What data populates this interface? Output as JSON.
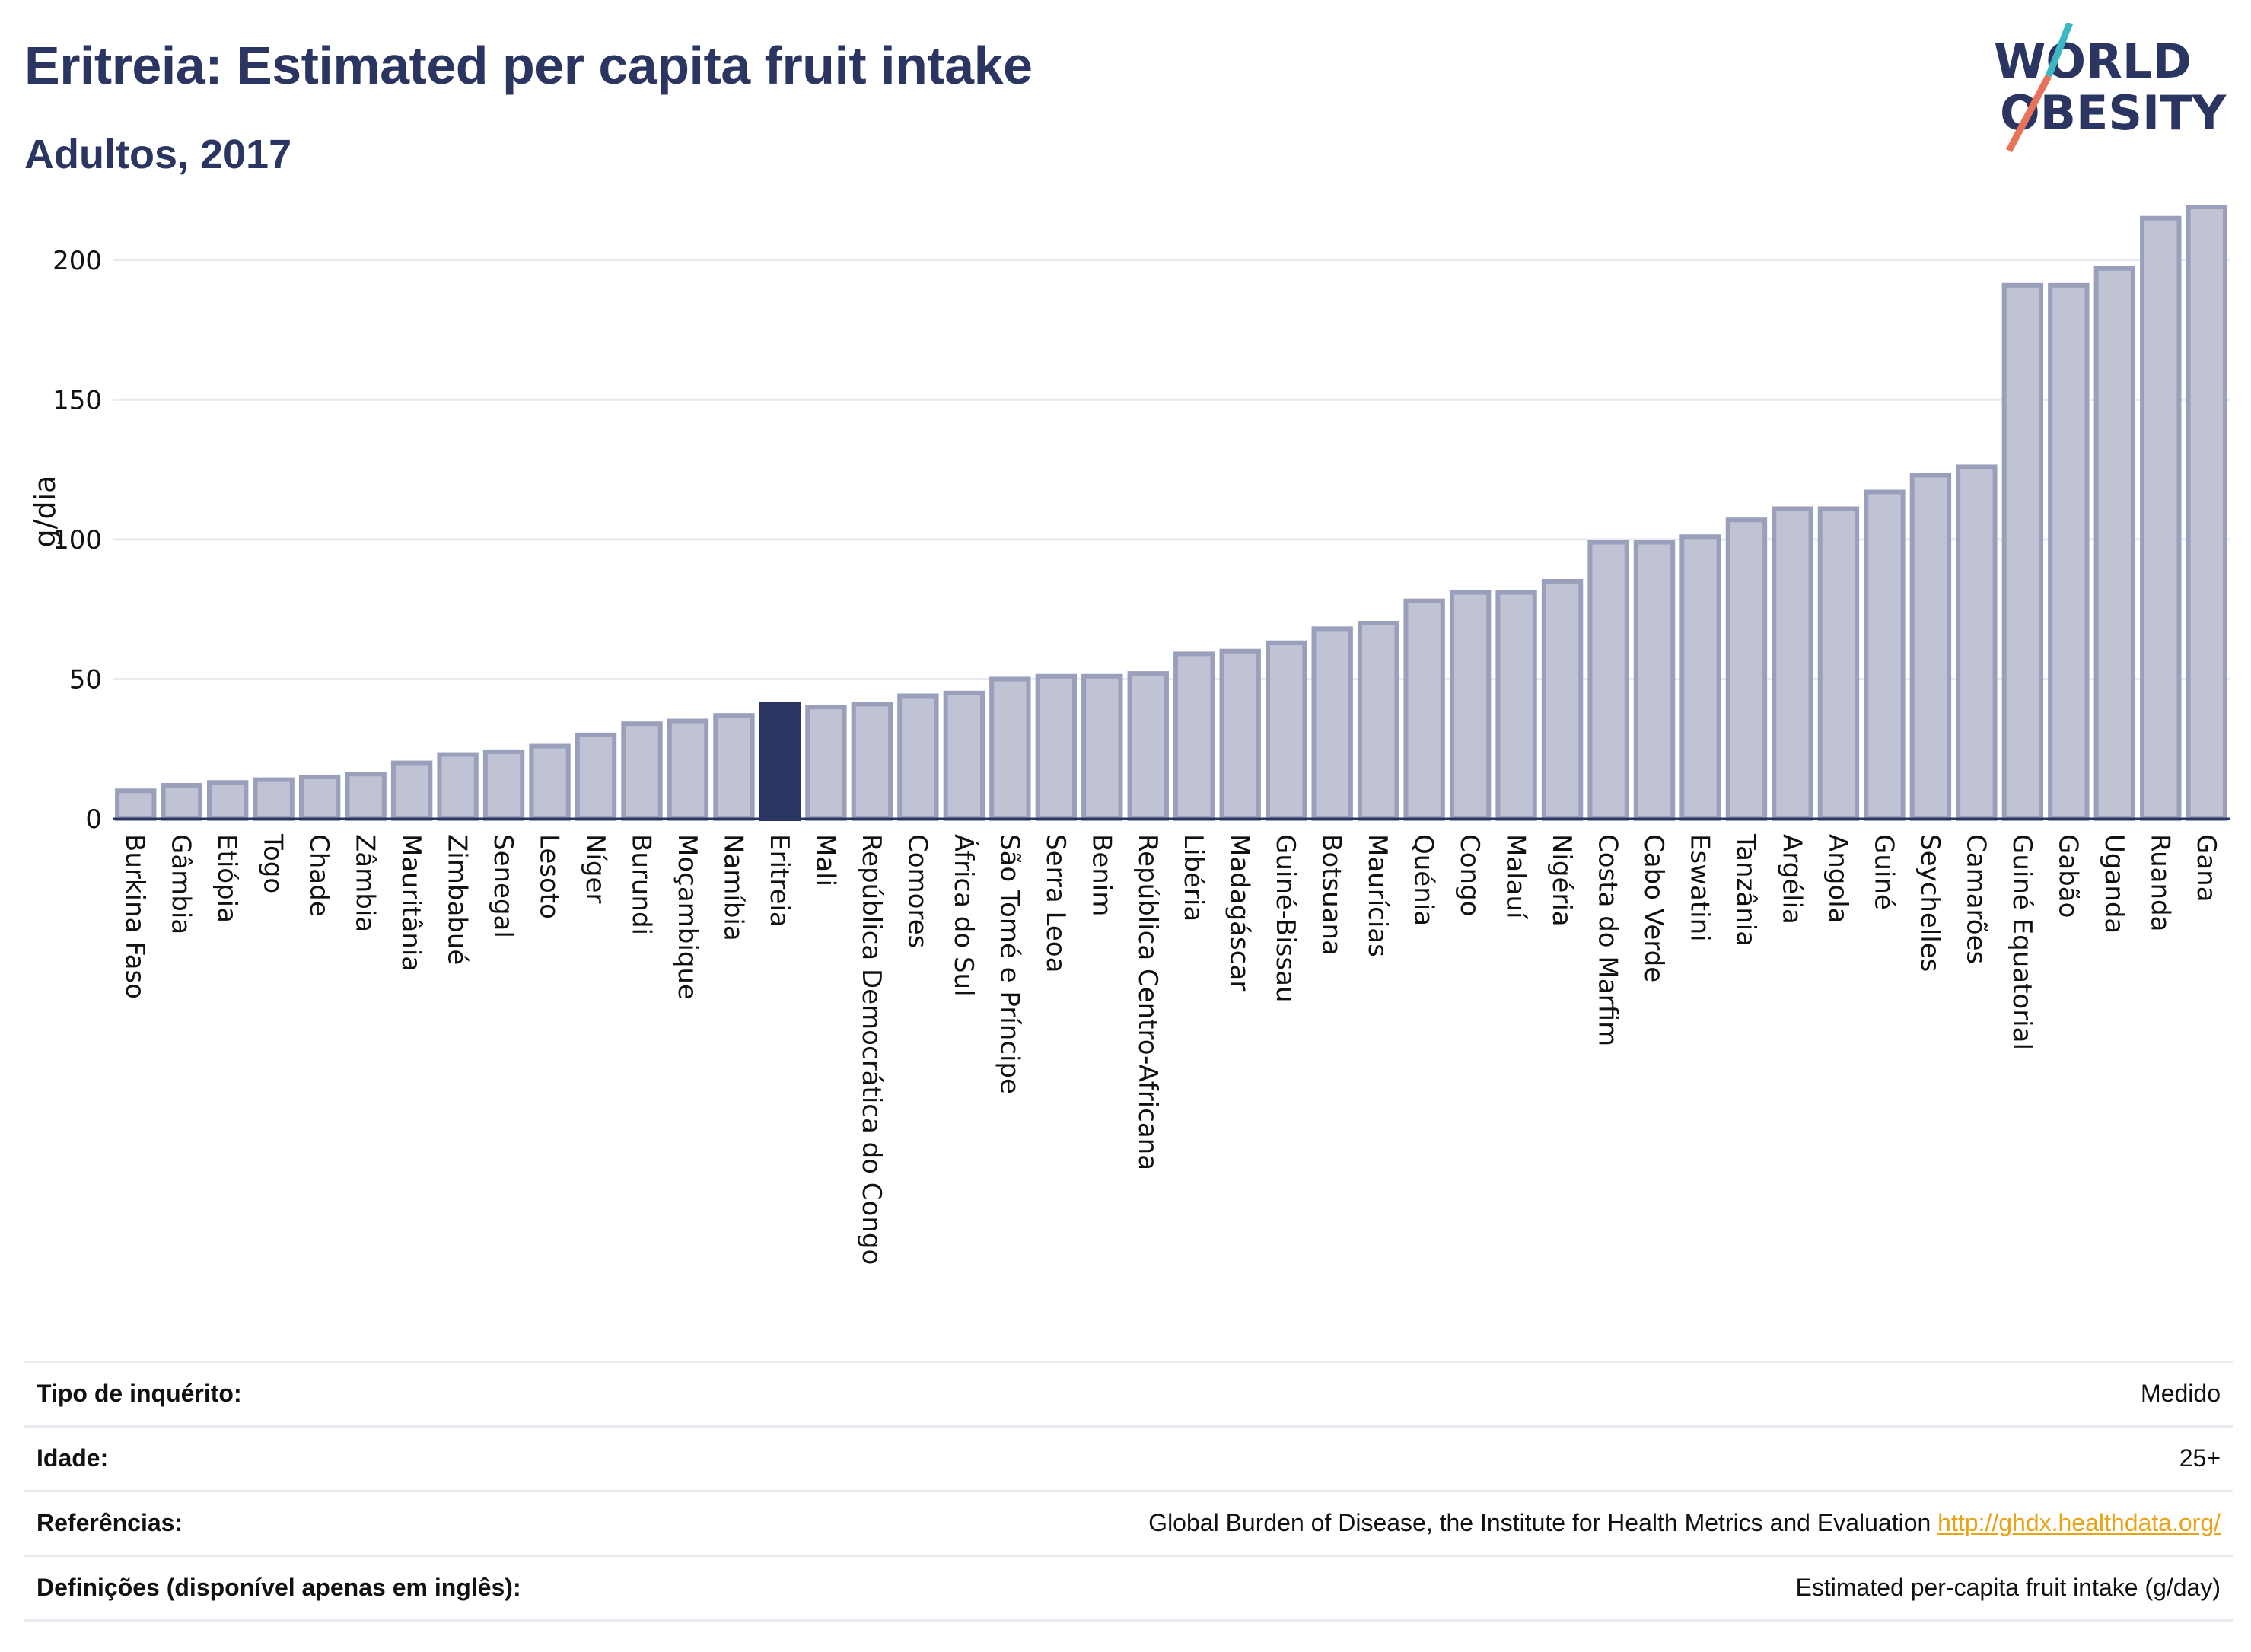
{
  "header": {
    "title": "Eritreia: Estimated per capita fruit intake",
    "subtitle": "Adultos, 2017"
  },
  "logo": {
    "line1": "WORLD",
    "line2": "OBESITY",
    "colors": {
      "text": "#2a3561",
      "slash_top": "#3bb8c4",
      "slash_bottom": "#e8735a"
    }
  },
  "chart_data": {
    "type": "bar",
    "ylabel": "g/dia",
    "ylim": [
      0,
      225
    ],
    "yticks": [
      0,
      50,
      100,
      150,
      200
    ],
    "grid": true,
    "highlight": "Eritreia",
    "colors": {
      "bar": "#bfc3d3",
      "bar_edge": "#9aa0bb",
      "highlight": "#2a3561",
      "grid": "#e8eaee"
    },
    "categories": [
      "Burkina Faso",
      "Gâmbia",
      "Etiópia",
      "Togo",
      "Chade",
      "Zâmbia",
      "Mauritânia",
      "Zimbabué",
      "Senegal",
      "Lesoto",
      "Níger",
      "Burundi",
      "Moçambique",
      "Namíbia",
      "Eritreia",
      "Mali",
      "República Democrática do Congo",
      "Comores",
      "África do Sul",
      "São Tomé e Príncipe",
      "Serra Leoa",
      "Benim",
      "República Centro-Africana",
      "Libéria",
      "Madagáscar",
      "Guiné-Bissau",
      "Botsuana",
      "Maurícias",
      "Quénia",
      "Congo",
      "Malauí",
      "Nigéria",
      "Costa do Marfim",
      "Cabo Verde",
      "Eswatini",
      "Tanzânia",
      "Argélia",
      "Angola",
      "Guiné",
      "Seychelles",
      "Camarões",
      "Guiné Equatorial",
      "Gabão",
      "Uganda",
      "Ruanda",
      "Gana"
    ],
    "values": [
      10,
      12,
      13,
      14,
      15,
      16,
      20,
      23,
      24,
      26,
      30,
      34,
      35,
      37,
      41,
      40,
      41,
      44,
      45,
      50,
      51,
      51,
      52,
      59,
      60,
      63,
      68,
      70,
      78,
      81,
      81,
      85,
      99,
      99,
      101,
      107,
      111,
      111,
      117,
      123,
      126,
      191,
      191,
      197,
      215,
      219
    ]
  },
  "info": {
    "rows": [
      {
        "key": "Tipo de inquérito:",
        "value": "Medido"
      },
      {
        "key": "Idade:",
        "value": "25+"
      },
      {
        "key": "Referências:",
        "value": "Global Burden of Disease, the Institute for Health Metrics and Evaluation",
        "link": "http://ghdx.healthdata.org/"
      },
      {
        "key": "Definições (disponível apenas em inglês):",
        "value": "Estimated per-capita fruit intake (g/day)"
      }
    ]
  }
}
